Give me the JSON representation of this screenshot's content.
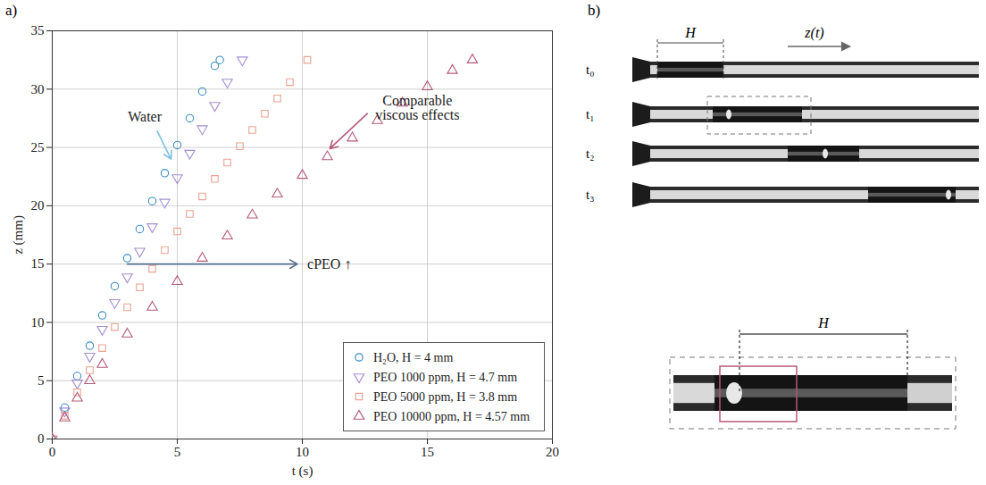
{
  "chart_data": {
    "type": "scatter",
    "xlabel": "t (s)",
    "ylabel": "z (mm)",
    "xlim": [
      0,
      20
    ],
    "ylim": [
      0,
      35
    ],
    "xticks": [
      0,
      5,
      10,
      15,
      20
    ],
    "yticks": [
      0,
      5,
      10,
      15,
      20,
      25,
      30,
      35
    ],
    "grid": true,
    "legend": "lower right",
    "annotations": [
      "Water",
      "Comparable viscous effects",
      "cPEO ↑"
    ],
    "series": [
      {
        "name": "H₂O, H = 4 mm",
        "color": "#3a8cc4",
        "marker": "circle",
        "x": [
          0,
          0.5,
          1,
          1.5,
          2,
          2.5,
          3,
          3.5,
          4,
          4.5,
          5,
          5.5,
          6,
          6.5,
          6.7
        ],
        "values": [
          0,
          2.7,
          5.4,
          8,
          10.6,
          13.1,
          15.5,
          18,
          20.4,
          22.8,
          25.2,
          27.5,
          29.8,
          32,
          32.5
        ]
      },
      {
        "name": "PEO 1000 ppm, H = 4.7 mm",
        "color": "#a38ed2",
        "marker": "triangle-down",
        "x": [
          0,
          0.5,
          1,
          1.5,
          2,
          2.5,
          3,
          3.5,
          4,
          4.5,
          5,
          5.5,
          6,
          6.5,
          7,
          7.6
        ],
        "values": [
          0,
          2.4,
          4.8,
          7.1,
          9.4,
          11.7,
          13.9,
          16.1,
          18.2,
          20.3,
          22.4,
          24.5,
          26.6,
          28.6,
          30.6,
          32.5
        ]
      },
      {
        "name": "PEO 5000 ppm, H = 3.8 mm",
        "color": "#e9a290",
        "marker": "square",
        "x": [
          0,
          0.5,
          1,
          1.5,
          2,
          2.5,
          3,
          3.5,
          4,
          4.5,
          5,
          5.5,
          6,
          6.5,
          7,
          7.5,
          8,
          8.5,
          9,
          9.5,
          10.2
        ],
        "values": [
          0,
          2,
          4,
          5.9,
          7.8,
          9.6,
          11.3,
          13,
          14.6,
          16.2,
          17.8,
          19.3,
          20.8,
          22.3,
          23.7,
          25.1,
          26.5,
          27.9,
          29.2,
          30.6,
          32.5
        ]
      },
      {
        "name": "PEO 10000 ppm, H = 4.57 mm",
        "color": "#b65a7a",
        "marker": "triangle",
        "x": [
          0,
          0.5,
          1,
          1.5,
          2,
          3,
          4,
          5,
          6,
          7,
          8,
          9,
          10,
          11,
          12,
          13,
          14,
          15,
          16,
          16.8
        ],
        "values": [
          0,
          1.8,
          3.5,
          5,
          6.4,
          9,
          11.3,
          13.5,
          15.5,
          17.4,
          19.2,
          21,
          22.6,
          24.2,
          25.8,
          27.3,
          28.8,
          30.2,
          31.6,
          32.5
        ]
      }
    ]
  },
  "panel_labels": [
    "a)",
    "b)"
  ],
  "diagram": {
    "rows": [
      "t₀",
      "t₁",
      "t₂",
      "t₃"
    ],
    "length_label": "H",
    "displacement_label": "z(t)",
    "inset_label": "H"
  }
}
